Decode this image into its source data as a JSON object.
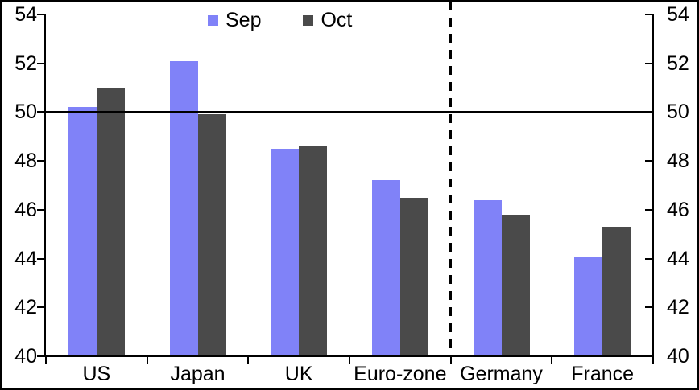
{
  "chart_data": {
    "type": "bar",
    "title": "",
    "categories": [
      "US",
      "Japan",
      "UK",
      "Euro-zone",
      "Germany",
      "France"
    ],
    "series": [
      {
        "name": "Sep",
        "color": "#8082F8",
        "values": [
          50.2,
          52.1,
          48.5,
          47.2,
          46.4,
          44.1
        ]
      },
      {
        "name": "Oct",
        "color": "#4A4A4A",
        "values": [
          51.0,
          49.9,
          48.6,
          46.5,
          45.8,
          45.3
        ]
      }
    ],
    "ylim": [
      40,
      54
    ],
    "yticks": [
      40,
      42,
      44,
      46,
      48,
      50,
      52,
      54
    ],
    "ytick_step": 2,
    "refline_y": 50,
    "separator_after_category": "Euro-zone",
    "dual_axis_labels": true,
    "grid": false,
    "legend_position": "top-center",
    "axis_color": "#000000",
    "background_color": "#FFFFFF"
  }
}
